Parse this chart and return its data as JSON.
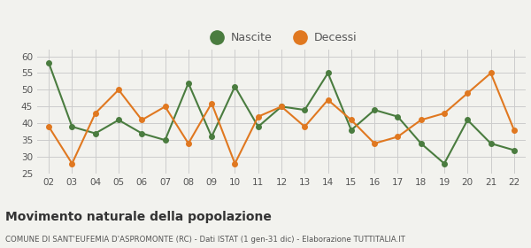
{
  "years": [
    "02",
    "03",
    "04",
    "05",
    "06",
    "07",
    "08",
    "09",
    "10",
    "11",
    "12",
    "13",
    "14",
    "15",
    "16",
    "17",
    "18",
    "19",
    "20",
    "21",
    "22"
  ],
  "nascite": [
    58,
    39,
    37,
    41,
    37,
    35,
    52,
    36,
    51,
    39,
    45,
    44,
    55,
    38,
    44,
    42,
    34,
    28,
    41,
    34,
    32
  ],
  "decessi": [
    39,
    28,
    43,
    50,
    41,
    45,
    34,
    46,
    28,
    42,
    45,
    39,
    47,
    41,
    34,
    36,
    41,
    43,
    49,
    55,
    38
  ],
  "nascite_color": "#4a7c3f",
  "decessi_color": "#e07820",
  "bg_color": "#f2f2ee",
  "grid_color": "#cccccc",
  "ylim": [
    25,
    62
  ],
  "yticks": [
    25,
    30,
    35,
    40,
    45,
    50,
    55,
    60
  ],
  "title": "Movimento naturale della popolazione",
  "subtitle": "COMUNE DI SANT'EUFEMIA D'ASPROMONTE (RC) - Dati ISTAT (1 gen-31 dic) - Elaborazione TUTTITALIA.IT",
  "legend_nascite": "Nascite",
  "legend_decessi": "Decessi",
  "marker_size": 4,
  "line_width": 1.5
}
